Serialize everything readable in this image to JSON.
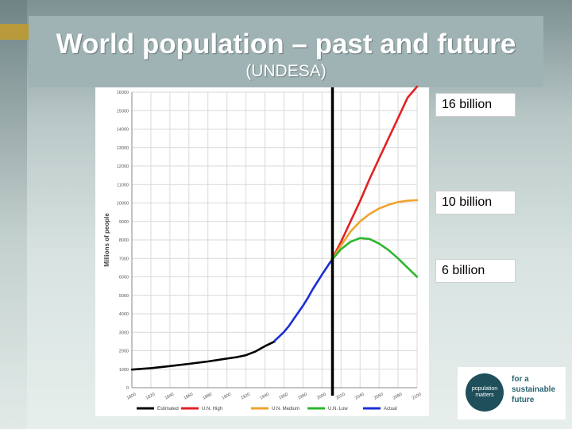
{
  "slide": {
    "title": "World population – past and future",
    "subtitle": "(UNDESA)"
  },
  "callouts": {
    "high": "16 billion",
    "medium": "10 billion",
    "low": "6 billion"
  },
  "logo": {
    "name_line1": "population",
    "name_line2": "matters",
    "tagline_line1": "for a",
    "tagline_line2": "sustainable",
    "tagline_line3": "future"
  },
  "chart_data": {
    "type": "line",
    "ylabel": "Millions of people",
    "xlabel": "",
    "xlim": [
      1800,
      2100
    ],
    "ylim": [
      0,
      16000
    ],
    "x_ticks": [
      "1800",
      "1820",
      "1840",
      "1860",
      "1880",
      "1900",
      "1920",
      "1940",
      "1960",
      "1980",
      "2000",
      "2020",
      "2040",
      "2060",
      "2080",
      "2100"
    ],
    "y_ticks": [
      0,
      1000,
      2000,
      3000,
      4000,
      5000,
      6000,
      7000,
      8000,
      9000,
      10000,
      11000,
      12000,
      13000,
      14000,
      15000,
      16000
    ],
    "divider_x": 2011,
    "grid": true,
    "legend_position": "bottom",
    "series": [
      {
        "name": "Estimated",
        "color": "#000000",
        "points": [
          [
            1800,
            980
          ],
          [
            1820,
            1060
          ],
          [
            1840,
            1170
          ],
          [
            1860,
            1290
          ],
          [
            1880,
            1420
          ],
          [
            1900,
            1580
          ],
          [
            1910,
            1650
          ],
          [
            1920,
            1760
          ],
          [
            1930,
            1960
          ],
          [
            1940,
            2250
          ],
          [
            1950,
            2500
          ]
        ]
      },
      {
        "name": "Actual",
        "color": "#1a2fd6",
        "points": [
          [
            1950,
            2530
          ],
          [
            1955,
            2770
          ],
          [
            1960,
            3020
          ],
          [
            1965,
            3330
          ],
          [
            1970,
            3700
          ],
          [
            1975,
            4070
          ],
          [
            1980,
            4440
          ],
          [
            1985,
            4850
          ],
          [
            1990,
            5310
          ],
          [
            1995,
            5720
          ],
          [
            2000,
            6120
          ],
          [
            2005,
            6510
          ],
          [
            2010,
            6900
          ]
        ]
      },
      {
        "name": "U.N. High",
        "color": "#e32222",
        "points": [
          [
            2010,
            6900
          ],
          [
            2020,
            7900
          ],
          [
            2030,
            9000
          ],
          [
            2040,
            10100
          ],
          [
            2050,
            11300
          ],
          [
            2060,
            12400
          ],
          [
            2070,
            13500
          ],
          [
            2080,
            14600
          ],
          [
            2090,
            15700
          ],
          [
            2100,
            16300
          ]
        ]
      },
      {
        "name": "U.N. Medium",
        "color": "#f0a32e",
        "points": [
          [
            2010,
            6900
          ],
          [
            2020,
            7700
          ],
          [
            2030,
            8450
          ],
          [
            2040,
            9000
          ],
          [
            2050,
            9400
          ],
          [
            2060,
            9700
          ],
          [
            2070,
            9900
          ],
          [
            2080,
            10050
          ],
          [
            2090,
            10120
          ],
          [
            2100,
            10150
          ]
        ]
      },
      {
        "name": "U.N. Low",
        "color": "#2db62d",
        "points": [
          [
            2010,
            6900
          ],
          [
            2020,
            7500
          ],
          [
            2030,
            7900
          ],
          [
            2040,
            8100
          ],
          [
            2050,
            8050
          ],
          [
            2060,
            7800
          ],
          [
            2070,
            7450
          ],
          [
            2080,
            7000
          ],
          [
            2090,
            6500
          ],
          [
            2100,
            6000
          ]
        ]
      }
    ]
  }
}
